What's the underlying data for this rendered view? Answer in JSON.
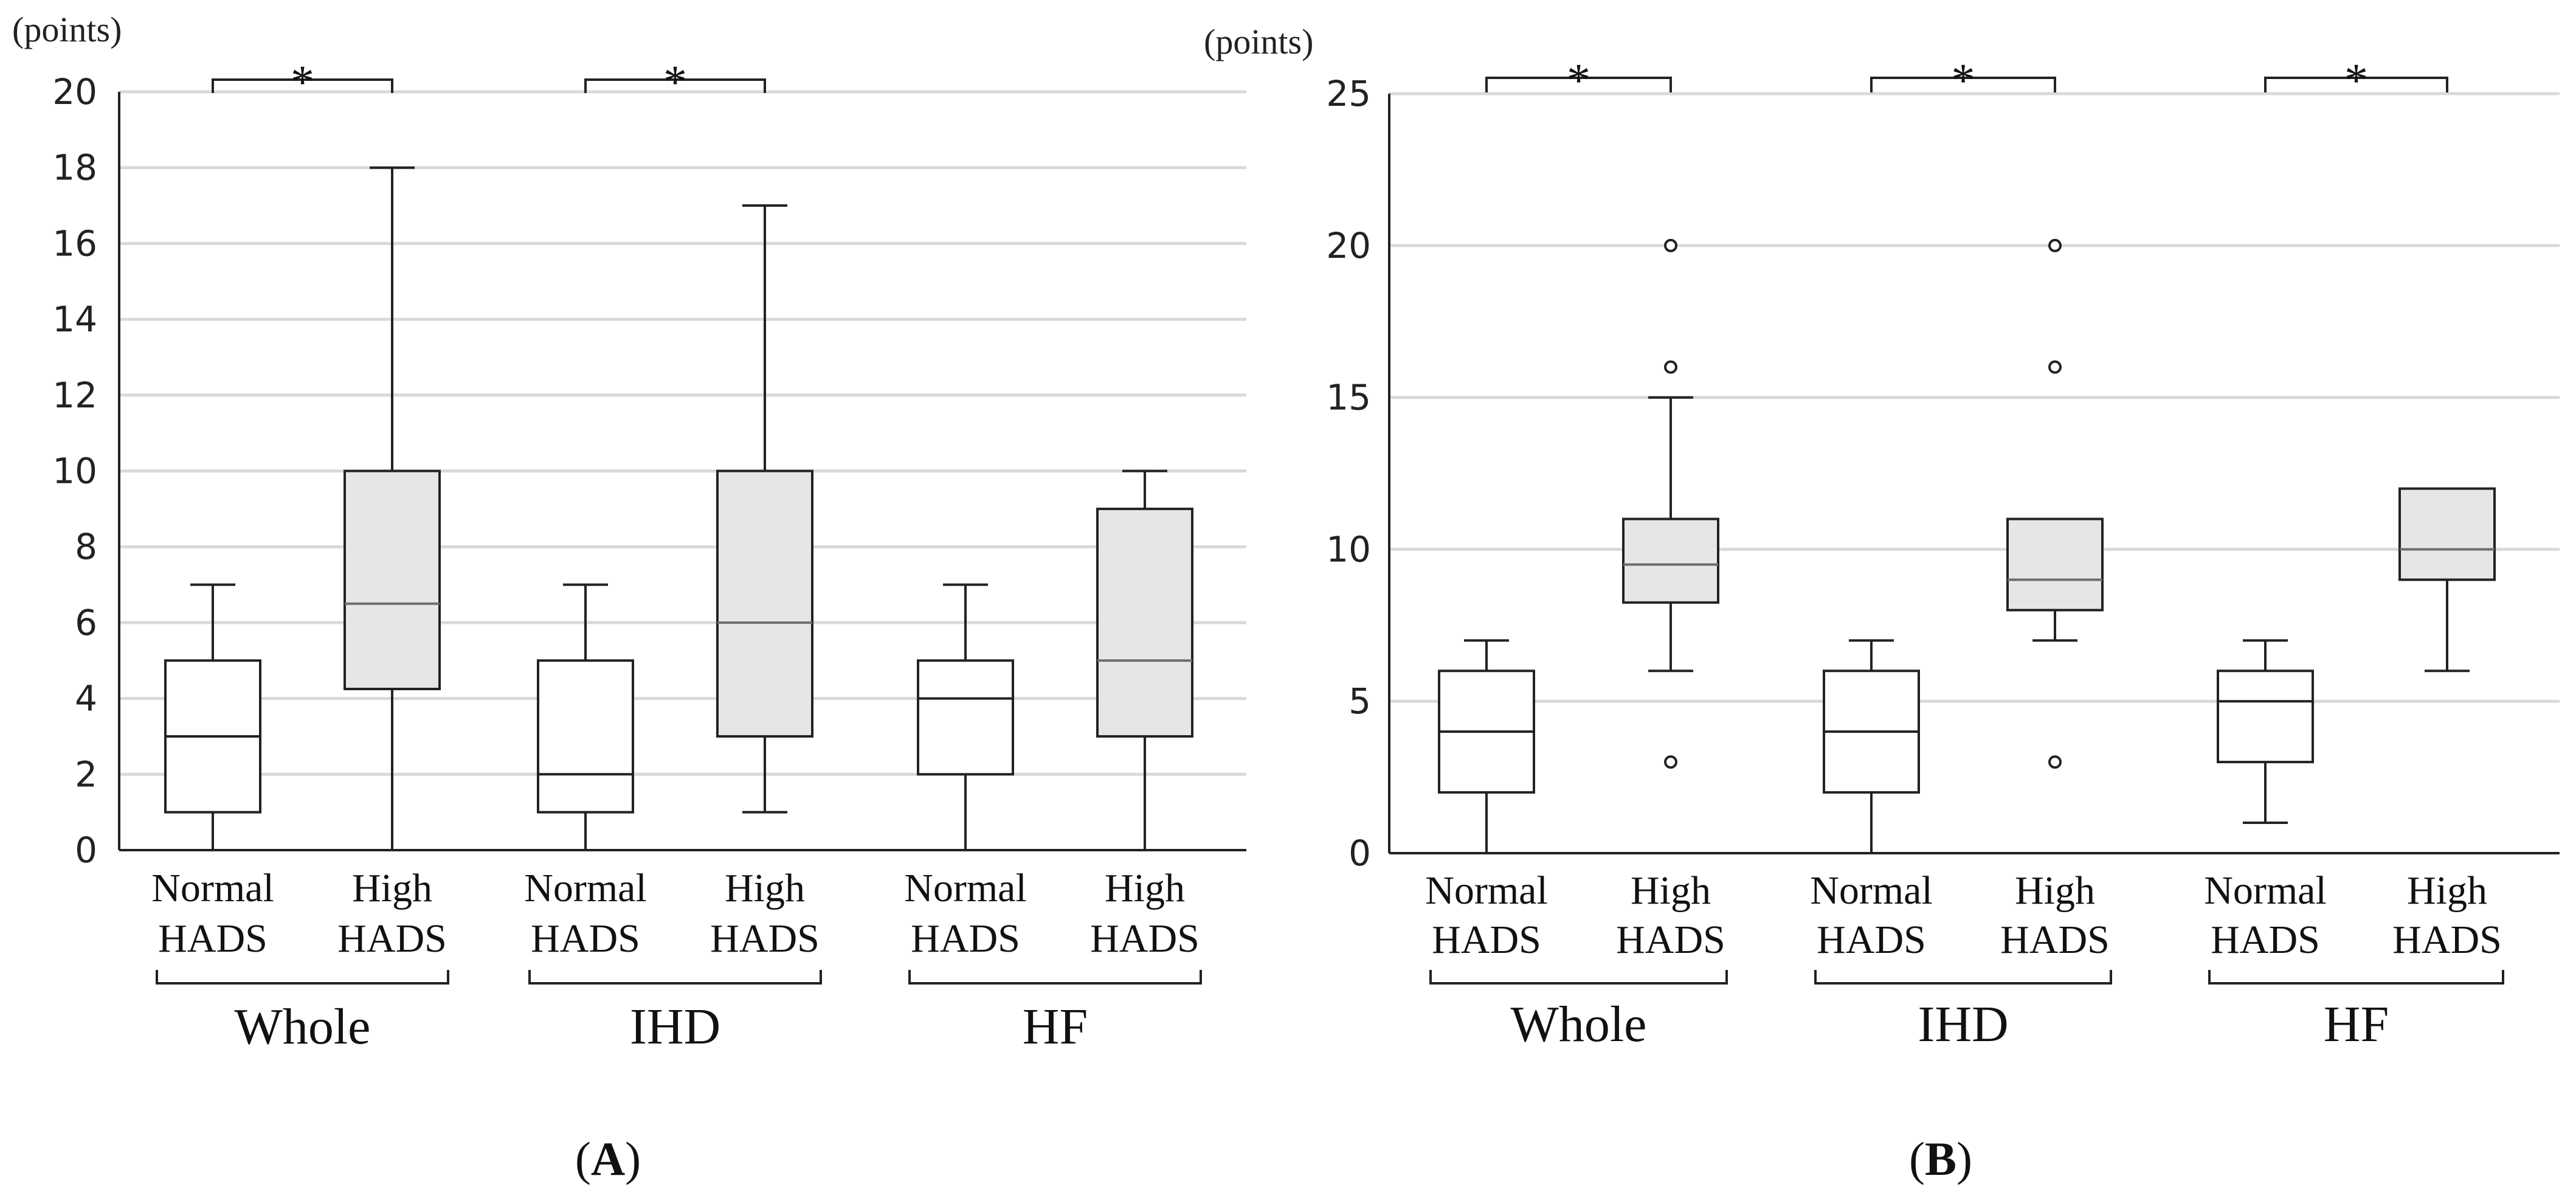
{
  "chart_data": [
    {
      "panel": "A",
      "type": "box",
      "unit": "(points)",
      "ylim": [
        0,
        20
      ],
      "yticks": [
        0,
        2,
        4,
        6,
        8,
        10,
        12,
        14,
        16,
        18,
        20
      ],
      "grid": true,
      "groups": [
        {
          "label": "Whole",
          "significant": true,
          "boxes": [
            {
              "label_line1": "Normal",
              "label_line2": "HADS",
              "fill": "#ffffff",
              "min": 0,
              "q1": 1,
              "median": 3,
              "q3": 5,
              "max": 7,
              "outliers": []
            },
            {
              "label_line1": "High",
              "label_line2": "HADS",
              "fill": "#e6e6e6",
              "min": 0,
              "q1": 4.25,
              "median": 6.5,
              "q3": 10,
              "max": 18,
              "outliers": []
            }
          ]
        },
        {
          "label": "IHD",
          "significant": true,
          "boxes": [
            {
              "label_line1": "Normal",
              "label_line2": "HADS",
              "fill": "#ffffff",
              "min": 0,
              "q1": 1,
              "median": 2,
              "q3": 5,
              "max": 7,
              "outliers": []
            },
            {
              "label_line1": "High",
              "label_line2": "HADS",
              "fill": "#e6e6e6",
              "min": 1,
              "q1": 3,
              "median": 6,
              "q3": 10,
              "max": 17,
              "outliers": []
            }
          ]
        },
        {
          "label": "HF",
          "significant": false,
          "boxes": [
            {
              "label_line1": "Normal",
              "label_line2": "HADS",
              "fill": "#ffffff",
              "min": 0,
              "q1": 2,
              "median": 4,
              "q3": 5,
              "max": 7,
              "outliers": []
            },
            {
              "label_line1": "High",
              "label_line2": "HADS",
              "fill": "#e6e6e6",
              "min": 0,
              "q1": 3,
              "median": 5,
              "q3": 9,
              "max": 10,
              "outliers": []
            }
          ]
        }
      ],
      "significance_mark": "*",
      "panel_label_open": "(",
      "panel_label_letter": "A",
      "panel_label_close": ")"
    },
    {
      "panel": "B",
      "type": "box",
      "unit": "(points)",
      "ylim": [
        0,
        25
      ],
      "yticks": [
        0,
        5,
        10,
        15,
        20,
        25
      ],
      "grid": true,
      "groups": [
        {
          "label": "Whole",
          "significant": true,
          "boxes": [
            {
              "label_line1": "Normal",
              "label_line2": "HADS",
              "fill": "#ffffff",
              "min": 0,
              "q1": 2,
              "median": 4,
              "q3": 6,
              "max": 7,
              "outliers": []
            },
            {
              "label_line1": "High",
              "label_line2": "HADS",
              "fill": "#e6e6e6",
              "min": 6,
              "q1": 8.25,
              "median": 9.5,
              "q3": 11,
              "max": 15,
              "outliers": [
                3,
                16,
                20
              ]
            }
          ]
        },
        {
          "label": "IHD",
          "significant": true,
          "boxes": [
            {
              "label_line1": "Normal",
              "label_line2": "HADS",
              "fill": "#ffffff",
              "min": 0,
              "q1": 2,
              "median": 4,
              "q3": 6,
              "max": 7,
              "outliers": []
            },
            {
              "label_line1": "High",
              "label_line2": "HADS",
              "fill": "#e6e6e6",
              "min": 7,
              "q1": 8,
              "median": 9,
              "q3": 11,
              "max": 11,
              "outliers": [
                3,
                16,
                20
              ]
            }
          ]
        },
        {
          "label": "HF",
          "significant": true,
          "boxes": [
            {
              "label_line1": "Normal",
              "label_line2": "HADS",
              "fill": "#ffffff",
              "min": 1,
              "q1": 3,
              "median": 5,
              "q3": 6,
              "max": 7,
              "outliers": []
            },
            {
              "label_line1": "High",
              "label_line2": "HADS",
              "fill": "#e6e6e6",
              "min": 6,
              "q1": 9,
              "median": 10,
              "q3": 12,
              "max": 12,
              "outliers": []
            }
          ]
        }
      ],
      "significance_mark": "*",
      "panel_label_open": "(",
      "panel_label_letter": "B",
      "panel_label_close": ")"
    }
  ],
  "colors": {
    "axis": "#222222",
    "grid": "#d9d9d9",
    "normal_fill": "#ffffff",
    "high_fill": "#e6e6e6",
    "high_median": "#6d6d6d"
  }
}
